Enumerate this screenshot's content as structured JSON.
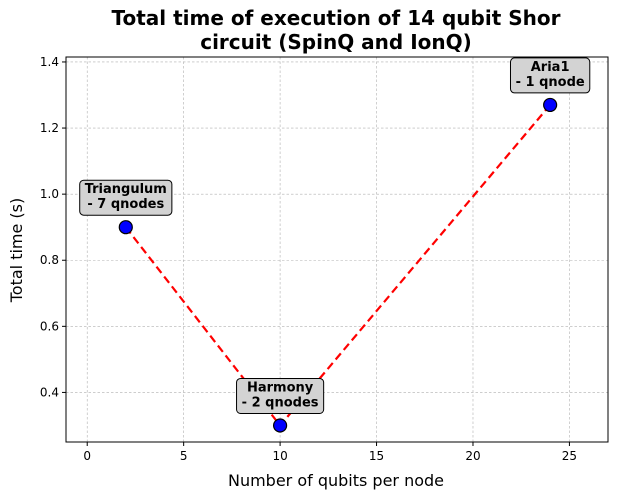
{
  "chart_data": {
    "type": "line",
    "title_lines": [
      "Total time of execution of 14 qubit Shor",
      "circuit (SpinQ and IonQ)"
    ],
    "xlabel": "Number of qubits per node",
    "ylabel": "Total time (s)",
    "xlim": [
      -1.1,
      27
    ],
    "ylim": [
      0.25,
      1.415
    ],
    "x_ticks": [
      0,
      5,
      10,
      15,
      20,
      25
    ],
    "y_ticks": [
      0.4,
      0.6,
      0.8,
      1.0,
      1.2,
      1.4
    ],
    "x_tick_labels": [
      "0",
      "5",
      "10",
      "15",
      "20",
      "25"
    ],
    "y_tick_labels": [
      "0.4",
      "0.6",
      "0.8",
      "1.0",
      "1.2",
      "1.4"
    ],
    "grid": true,
    "series": [
      {
        "x": [
          2,
          10,
          24
        ],
        "y": [
          0.9,
          0.3,
          1.27
        ],
        "line_color": "#ff0000",
        "line_style": "dashed",
        "marker_color": "#0000ff",
        "marker_edge_color": "#000000"
      }
    ],
    "annotations": [
      {
        "lines": [
          "Triangulum",
          "- 7 qnodes"
        ]
      },
      {
        "lines": [
          "Harmony",
          "- 2 qnodes"
        ]
      },
      {
        "lines": [
          "Aria1",
          "- 1 qnode"
        ]
      }
    ],
    "annotation_box_color": "#d3d3d3"
  }
}
